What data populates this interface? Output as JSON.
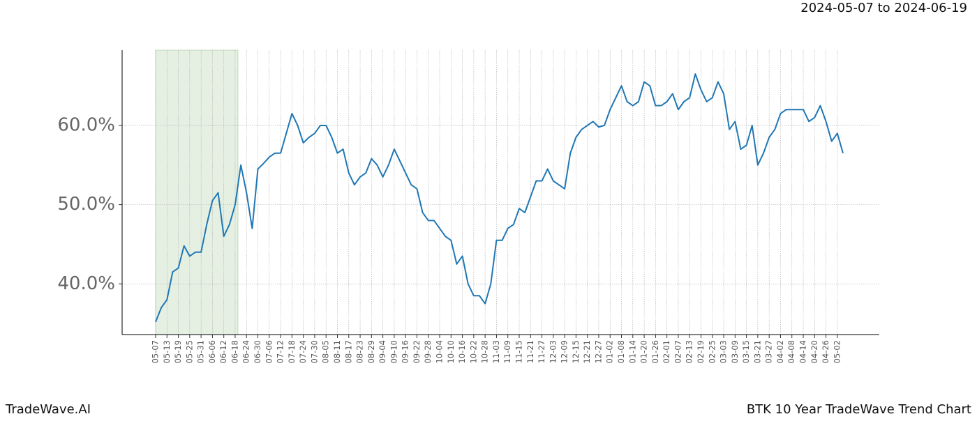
{
  "chart_data": {
    "type": "line",
    "title": "BTK 10 Year TradeWave Trend Chart",
    "subtitle": "2024-05-07 to 2024-06-19",
    "watermark": "TradeWave.AI",
    "categories": [
      "05-07",
      null,
      "05-13",
      null,
      "05-19",
      null,
      "05-25",
      null,
      "05-31",
      null,
      "06-06",
      null,
      "06-12",
      null,
      "06-18",
      null,
      "06-24",
      null,
      "06-30",
      null,
      "07-06",
      null,
      "07-12",
      null,
      "07-18",
      null,
      "07-24",
      null,
      "07-30",
      null,
      "08-05",
      null,
      "08-11",
      null,
      "08-17",
      null,
      "08-23",
      null,
      "08-29",
      null,
      "09-04",
      null,
      "09-10",
      null,
      "09-16",
      null,
      "09-22",
      null,
      "09-28",
      null,
      "10-04",
      null,
      "10-10",
      null,
      "10-16",
      null,
      "10-22",
      null,
      "10-28",
      null,
      "11-03",
      null,
      "11-09",
      null,
      "11-15",
      null,
      "11-21",
      null,
      "11-27",
      null,
      "12-03",
      null,
      "12-09",
      null,
      "12-15",
      null,
      "12-21",
      null,
      "12-27",
      null,
      "01-02",
      null,
      "01-08",
      null,
      "01-14",
      null,
      "01-20",
      null,
      "01-26",
      null,
      "02-01",
      null,
      "02-07",
      null,
      "02-13",
      null,
      "02-19",
      null,
      "02-25",
      null,
      "03-03",
      null,
      "03-09",
      null,
      "03-15",
      null,
      "03-21",
      null,
      "03-27",
      null,
      "04-02",
      null,
      "04-08",
      null,
      "04-14",
      null,
      "04-20",
      null,
      "04-26",
      null,
      "05-02",
      null
    ],
    "series": [
      {
        "name": "BTK",
        "color": "#1f77b4",
        "values": [
          35.2,
          37,
          38,
          41.5,
          42,
          44.8,
          43.5,
          44,
          44,
          47.5,
          50.5,
          51.5,
          46,
          47.5,
          50,
          55,
          51.5,
          47,
          54.5,
          55.2,
          56,
          56.5,
          56.5,
          59,
          61.5,
          60,
          57.8,
          58.5,
          59,
          60,
          60,
          58.5,
          56.5,
          57,
          54,
          52.5,
          53.5,
          54,
          55.8,
          55,
          53.5,
          55,
          57,
          55.5,
          54,
          52.5,
          52,
          49,
          48,
          48,
          47,
          46,
          45.5,
          42.5,
          43.5,
          40,
          38.5,
          38.5,
          37.5,
          40,
          45.5,
          45.5,
          47,
          47.5,
          49.5,
          49,
          51,
          53,
          53,
          54.5,
          53,
          52.5,
          52,
          56.5,
          58.5,
          59.5,
          60,
          60.5,
          59.8,
          60,
          62,
          63.5,
          65,
          63,
          62.5,
          63,
          65.5,
          65,
          62.5,
          62.5,
          63,
          64,
          62,
          63,
          63.5,
          66.5,
          64.5,
          63,
          63.5,
          65.5,
          64,
          59.5,
          60.5,
          57,
          57.5,
          60,
          55,
          56.5,
          58.5,
          59.5,
          61.5,
          62,
          62,
          62,
          62,
          60.5,
          61,
          62.5,
          60.5,
          58,
          59,
          56.5
        ]
      }
    ],
    "shade": {
      "from": "05-07",
      "to": "06-18",
      "color": "#e5f0e3"
    },
    "ylim": [
      33.6,
      69.5
    ],
    "yticks": [
      {
        "value": 40,
        "label": "40.0%"
      },
      {
        "value": 50,
        "label": "50.0%"
      },
      {
        "value": 60,
        "label": "60.0%"
      }
    ],
    "grid": true
  }
}
